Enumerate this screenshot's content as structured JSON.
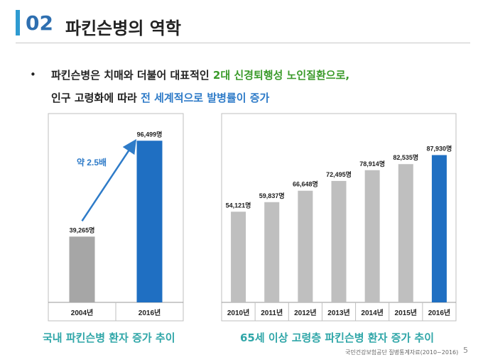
{
  "header": {
    "number": "02",
    "title": "파킨슨병의 역학"
  },
  "bullet": {
    "symbol": "•",
    "line1_pre": "파킨슨병은 치매와 더불어 대표적인 ",
    "line1_highlight": "2대 신경퇴행성 노인질환으로,",
    "line2_pre": "인구 고령화에 따라 ",
    "line2_highlight": "전 세계적으로 발병률이 증가"
  },
  "chart_data": [
    {
      "type": "bar",
      "categories": [
        "2004년",
        "2016년"
      ],
      "values": [
        39265,
        96499
      ],
      "data_labels": [
        "39,265명",
        "96,499명"
      ],
      "colors": [
        "#a6a6a6",
        "#1f6fc2"
      ],
      "annotation": "약 2.5배",
      "caption": "국내 파킨슨병 환자 증가 추이",
      "ylim": [
        0,
        100000
      ]
    },
    {
      "type": "bar",
      "categories": [
        "2010년",
        "2011년",
        "2012년",
        "2013년",
        "2014년",
        "2015년",
        "2016년"
      ],
      "values": [
        54121,
        59837,
        66648,
        72495,
        78914,
        82535,
        87930
      ],
      "data_labels": [
        "54,121명",
        "59,837명",
        "66,648명",
        "72,495명",
        "78,914명",
        "82,535명",
        "87,930명"
      ],
      "colors": [
        "#bfbfbf",
        "#bfbfbf",
        "#bfbfbf",
        "#bfbfbf",
        "#bfbfbf",
        "#bfbfbf",
        "#1f6fc2"
      ],
      "caption": "65세 이상 고령층 파킨슨병 환자 증가 추이",
      "ylim": [
        0,
        100000
      ]
    }
  ],
  "footer": {
    "source": "국민건강보험공단 질병통계자료(2010~2016)",
    "page": "5"
  },
  "colors": {
    "accent_bar": "#2e9bd1",
    "title_number": "#2e6fb0",
    "caption": "#2fa6a8",
    "arrow": "#2e7bc8"
  }
}
